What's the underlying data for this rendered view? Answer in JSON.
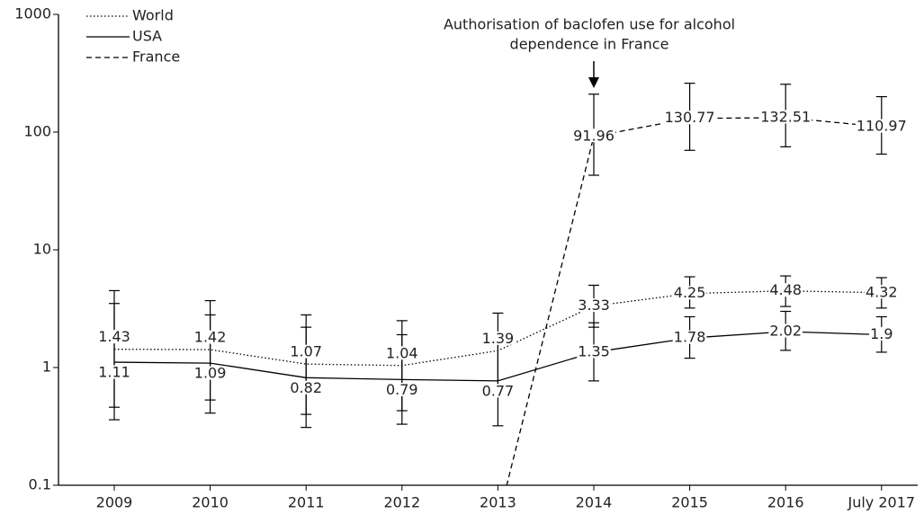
{
  "chart_data": {
    "type": "line",
    "log_scale": true,
    "categories": [
      "2009",
      "2010",
      "2011",
      "2012",
      "2013",
      "2014",
      "2015",
      "2016",
      "July 2017"
    ],
    "ylim": [
      0.1,
      1000
    ],
    "yticks": [
      0.1,
      1,
      10,
      100,
      1000
    ],
    "legend": "upper left",
    "annotation": [
      "Authorisation of baclofen use for alcohol",
      "dependence in France"
    ],
    "series": [
      {
        "name": "World",
        "color": "#000000",
        "style": "dotted",
        "values": [
          1.43,
          1.42,
          1.07,
          1.04,
          1.39,
          3.33,
          4.25,
          4.48,
          4.32
        ],
        "lower": [
          0.46,
          0.53,
          0.4,
          0.43,
          0.66,
          2.2,
          3.2,
          3.3,
          3.2
        ],
        "upper": [
          4.5,
          3.7,
          2.8,
          2.5,
          2.9,
          5.0,
          5.9,
          6.0,
          5.8
        ]
      },
      {
        "name": "USA",
        "color": "#000000",
        "style": "solid",
        "values": [
          1.11,
          1.09,
          0.82,
          0.79,
          0.77,
          1.35,
          1.78,
          2.02,
          1.9
        ],
        "lower": [
          0.36,
          0.41,
          0.31,
          0.33,
          0.32,
          0.77,
          1.2,
          1.4,
          1.35
        ],
        "upper": [
          3.5,
          2.8,
          2.2,
          1.9,
          1.8,
          2.4,
          2.7,
          3.0,
          2.7
        ]
      },
      {
        "name": "France",
        "color": "#000000",
        "style": "dashed",
        "values": [
          null,
          null,
          null,
          null,
          0.05,
          91.96,
          130.77,
          132.51,
          110.97
        ],
        "value_labels": [
          null,
          null,
          null,
          null,
          null,
          "91.96",
          "130.77",
          "132.51",
          "110.97"
        ],
        "lower": [
          null,
          null,
          null,
          null,
          null,
          43,
          70,
          75,
          65
        ],
        "upper": [
          null,
          null,
          null,
          null,
          null,
          210,
          260,
          255,
          200
        ]
      }
    ]
  }
}
